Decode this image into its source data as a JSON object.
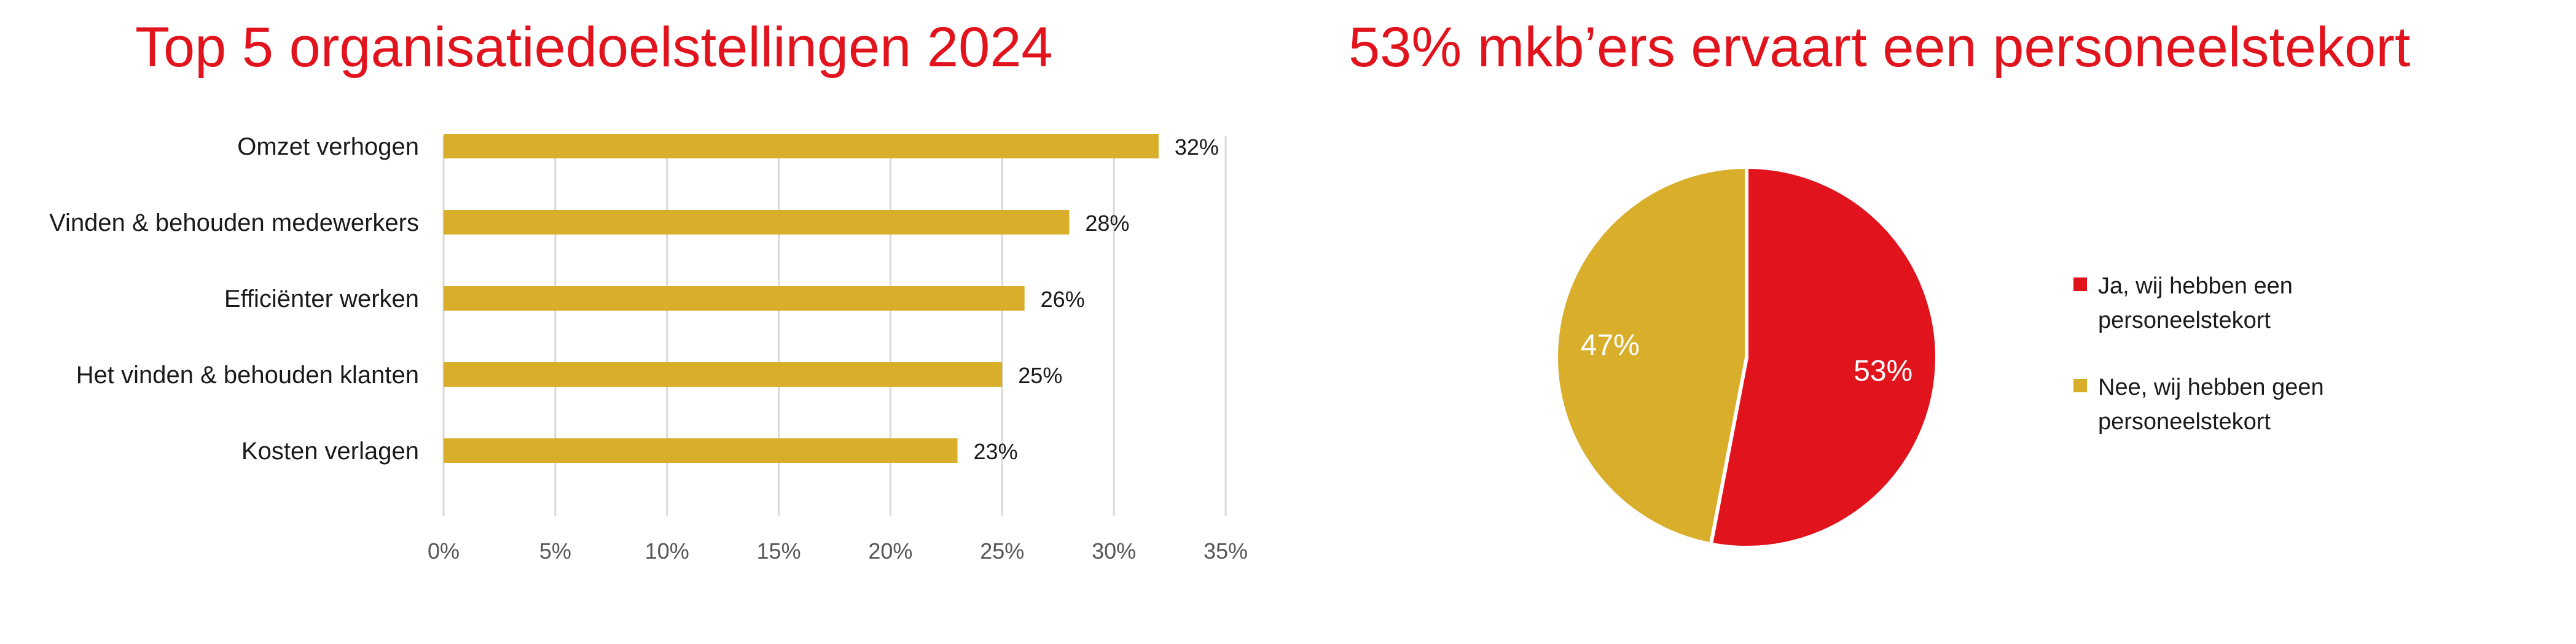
{
  "chart_data": [
    {
      "type": "bar",
      "orientation": "horizontal",
      "title": "Top 5 organisatiedoelstellingen 2024",
      "categories": [
        "Omzet verhogen",
        "Vinden & behouden medewerkers",
        "Efficiënter werken",
        "Het vinden & behouden klanten",
        "Kosten verlagen"
      ],
      "values": [
        32,
        28,
        26,
        25,
        23
      ],
      "value_labels": [
        "32%",
        "28%",
        "26%",
        "25%",
        "23%"
      ],
      "xlim": [
        0,
        35
      ],
      "xticks": [
        0,
        5,
        10,
        15,
        20,
        25,
        30,
        35
      ],
      "xtick_labels": [
        "0%",
        "5%",
        "10%",
        "15%",
        "20%",
        "25%",
        "30%",
        "35%"
      ],
      "grid": "vertical",
      "bar_color": "#d8ae2b"
    },
    {
      "type": "pie",
      "title": "53% mkb’ers ervaart een personeelstekort",
      "slices": [
        {
          "label_lines": [
            "Ja, wij hebben een",
            "personeelstekort"
          ],
          "value": 53,
          "value_label": "53%",
          "color": "#e1141e"
        },
        {
          "label_lines": [
            "Nee, wij hebben geen",
            "personeelstekort"
          ],
          "value": 47,
          "value_label": "47%",
          "color": "#d8ae2b"
        }
      ],
      "legend_position": "right"
    }
  ]
}
